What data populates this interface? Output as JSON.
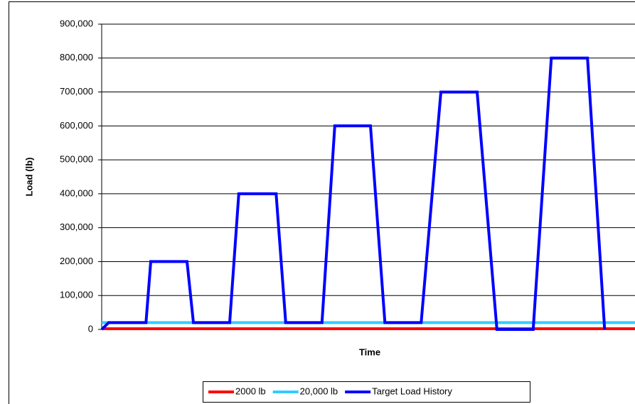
{
  "chart_data": {
    "type": "line",
    "xlabel": "Time",
    "ylabel": "Load (lb)",
    "xlim": [
      0,
      100
    ],
    "ylim": [
      0,
      900000
    ],
    "yticks": [
      0,
      {
        "value": 100000,
        "label": "100,000"
      },
      {
        "value": 200000,
        "label": "200,000"
      },
      {
        "value": 300000,
        "label": "300,000"
      },
      {
        "value": 400000,
        "label": "400,000"
      },
      {
        "value": 500000,
        "label": "500,000"
      },
      {
        "value": 600000,
        "label": "600,000"
      },
      {
        "value": 700000,
        "label": "700,000"
      },
      {
        "value": 800000,
        "label": "800,000"
      },
      {
        "value": 900000,
        "label": "900,000"
      }
    ],
    "grid": true,
    "legend": "bottom",
    "series": [
      {
        "name": "2000 lb",
        "color": "#ff0000",
        "x": [
          0,
          100
        ],
        "values": [
          2000,
          2000
        ]
      },
      {
        "name": "20,000 lb",
        "color": "#33ccff",
        "x": [
          0,
          100
        ],
        "values": [
          20000,
          20000
        ]
      },
      {
        "name": "Target Load History",
        "color": "#0000ff",
        "x": [
          0,
          1.3,
          8.3,
          9.2,
          16,
          17.2,
          24,
          25.7,
          32.7,
          34.5,
          41.3,
          43.7,
          50.4,
          53.1,
          59.9,
          63.6,
          70.4,
          74.1,
          80.9,
          84.3,
          91.1,
          94.3
        ],
        "values": [
          0,
          20000,
          20000,
          200000,
          200000,
          20000,
          20000,
          400000,
          400000,
          20000,
          20000,
          600000,
          600000,
          20000,
          20000,
          700000,
          700000,
          0,
          0,
          800000,
          800000,
          0
        ]
      }
    ]
  }
}
